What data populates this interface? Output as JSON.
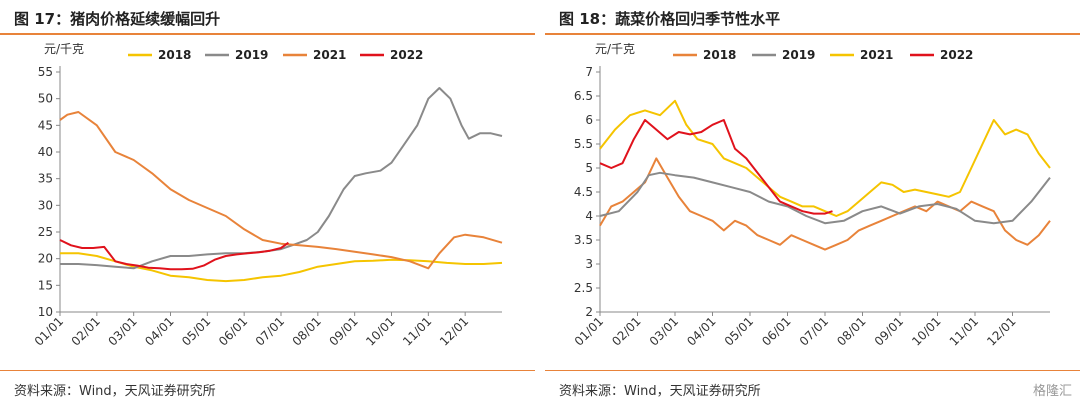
{
  "colors": {
    "c2018": "#F5C400",
    "c2019": "#8A8A8A",
    "c2021": "#E8833A",
    "c2022": "#E0121C",
    "rule": "#E8833A",
    "axis": "#888888"
  },
  "charts": [
    {
      "title": "图 17：猪肉价格延续缓幅回升",
      "unit": "元/千克",
      "source": "资料来源：Wind，天风证券研究所"
    },
    {
      "title": "图 18：蔬菜价格回归季节性水平",
      "unit": "元/千克",
      "source": "资料来源：Wind，天风证券研究所"
    }
  ],
  "watermark": "格隆汇",
  "chart_data": [
    {
      "type": "line",
      "title": "图 17：猪肉价格延续缓幅回升",
      "ylabel": "元/千克",
      "ylim": [
        10,
        55
      ],
      "yticks": [
        10,
        15,
        20,
        25,
        30,
        35,
        40,
        45,
        50,
        55
      ],
      "x_domain": [
        0,
        12
      ],
      "x_ticks": [
        "01/01",
        "02/01",
        "03/01",
        "04/01",
        "05/01",
        "06/01",
        "07/01",
        "08/01",
        "09/01",
        "10/01",
        "11/01",
        "12/01"
      ],
      "legend": "top",
      "grid": false,
      "series": [
        {
          "name": "2018",
          "color": "#F5C400",
          "x": [
            0,
            0.5,
            1,
            1.5,
            2,
            2.5,
            3,
            3.5,
            4,
            4.5,
            5,
            5.5,
            6,
            6.5,
            7,
            7.5,
            8,
            8.5,
            9,
            9.5,
            10,
            10.5,
            11,
            11.5,
            12
          ],
          "y": [
            21,
            21,
            20.5,
            19.5,
            18.5,
            17.8,
            16.8,
            16.5,
            16,
            15.8,
            16,
            16.5,
            16.8,
            17.5,
            18.5,
            19,
            19.5,
            19.6,
            19.8,
            19.7,
            19.5,
            19.2,
            19,
            19,
            19.2
          ]
        },
        {
          "name": "2019",
          "color": "#8A8A8A",
          "x": [
            0,
            0.5,
            1,
            1.5,
            2,
            2.5,
            3,
            3.5,
            4,
            4.5,
            5,
            5.5,
            6,
            6.3,
            6.7,
            7,
            7.3,
            7.7,
            8,
            8.3,
            8.7,
            9,
            9.3,
            9.7,
            10,
            10.3,
            10.6,
            10.9,
            11.1,
            11.4,
            11.7,
            12
          ],
          "y": [
            19,
            19,
            18.8,
            18.5,
            18.2,
            19.5,
            20.5,
            20.5,
            20.8,
            21,
            21,
            21.3,
            21.8,
            22.5,
            23.5,
            25,
            28,
            33,
            35.5,
            36,
            36.5,
            38,
            41,
            45,
            50,
            52,
            50,
            45,
            42.5,
            43.5,
            43.5,
            43
          ]
        },
        {
          "name": "2021",
          "color": "#E8833A",
          "x": [
            0,
            0.2,
            0.5,
            1,
            1.5,
            2,
            2.5,
            3,
            3.5,
            4,
            4.5,
            5,
            5.5,
            6,
            6.5,
            7,
            7.5,
            8,
            8.5,
            9,
            9.5,
            10,
            10.3,
            10.7,
            11,
            11.5,
            12
          ],
          "y": [
            46,
            47,
            47.5,
            45,
            40,
            38.5,
            36,
            33,
            31,
            29.5,
            28,
            25.5,
            23.5,
            22.8,
            22.5,
            22.2,
            21.8,
            21.3,
            20.8,
            20.3,
            19.5,
            18.2,
            21,
            24,
            24.5,
            24,
            23
          ]
        },
        {
          "name": "2022",
          "color": "#E0121C",
          "x": [
            0,
            0.3,
            0.6,
            0.9,
            1.2,
            1.5,
            1.8,
            2.1,
            2.4,
            2.7,
            3,
            3.3,
            3.6,
            3.9,
            4.2,
            4.5,
            4.8,
            5.1,
            5.4,
            5.7,
            6,
            6.2
          ],
          "y": [
            23.5,
            22.5,
            22,
            22,
            22.2,
            19.5,
            19,
            18.7,
            18.3,
            18.2,
            18,
            18,
            18.1,
            18.7,
            19.8,
            20.5,
            20.8,
            21,
            21.2,
            21.5,
            22,
            23
          ]
        }
      ]
    },
    {
      "type": "line",
      "title": "图 18：蔬菜价格回归季节性水平",
      "ylabel": "元/千克",
      "ylim": [
        2,
        7
      ],
      "yticks": [
        2,
        2.5,
        3,
        3.5,
        4,
        4.5,
        5,
        5.5,
        6,
        6.5,
        7
      ],
      "x_domain": [
        0,
        12
      ],
      "x_ticks": [
        "01/01",
        "02/01",
        "03/01",
        "04/01",
        "05/01",
        "06/01",
        "07/01",
        "08/01",
        "09/01",
        "10/01",
        "11/01",
        "12/01"
      ],
      "legend": "top",
      "grid": false,
      "series": [
        {
          "name": "2018",
          "color": "#E8833A",
          "x": [
            0,
            0.3,
            0.6,
            0.9,
            1.2,
            1.5,
            1.8,
            2.1,
            2.4,
            2.7,
            3,
            3.3,
            3.6,
            3.9,
            4.2,
            4.5,
            4.8,
            5.1,
            5.4,
            5.7,
            6,
            6.3,
            6.6,
            6.9,
            7.2,
            7.5,
            7.8,
            8.1,
            8.4,
            8.7,
            9,
            9.3,
            9.6,
            9.9,
            10.2,
            10.5,
            10.8,
            11.1,
            11.4,
            11.7,
            12
          ],
          "y": [
            3.8,
            4.2,
            4.3,
            4.5,
            4.7,
            5.2,
            4.8,
            4.4,
            4.1,
            4,
            3.9,
            3.7,
            3.9,
            3.8,
            3.6,
            3.5,
            3.4,
            3.6,
            3.5,
            3.4,
            3.3,
            3.4,
            3.5,
            3.7,
            3.8,
            3.9,
            4,
            4.1,
            4.2,
            4.1,
            4.3,
            4.2,
            4.1,
            4.3,
            4.2,
            4.1,
            3.7,
            3.5,
            3.4,
            3.6,
            3.9
          ]
        },
        {
          "name": "2019",
          "color": "#8A8A8A",
          "x": [
            0,
            0.5,
            1,
            1.3,
            1.6,
            2,
            2.5,
            3,
            3.5,
            4,
            4.5,
            5,
            5.5,
            6,
            6.5,
            7,
            7.5,
            8,
            8.5,
            9,
            9.5,
            10,
            10.5,
            11,
            11.5,
            12
          ],
          "y": [
            4,
            4.1,
            4.5,
            4.85,
            4.9,
            4.85,
            4.8,
            4.7,
            4.6,
            4.5,
            4.3,
            4.2,
            4,
            3.85,
            3.9,
            4.1,
            4.2,
            4.05,
            4.2,
            4.25,
            4.15,
            3.9,
            3.85,
            3.9,
            4.3,
            4.8
          ]
        },
        {
          "name": "2021",
          "color": "#F5C400",
          "x": [
            0,
            0.4,
            0.8,
            1.2,
            1.6,
            2,
            2.3,
            2.6,
            3,
            3.3,
            3.6,
            3.9,
            4.2,
            4.5,
            4.8,
            5.1,
            5.4,
            5.7,
            6,
            6.3,
            6.6,
            6.9,
            7.2,
            7.5,
            7.8,
            8.1,
            8.4,
            8.7,
            9,
            9.3,
            9.6,
            9.9,
            10.2,
            10.5,
            10.8,
            11.1,
            11.4,
            11.7,
            12
          ],
          "y": [
            5.4,
            5.8,
            6.1,
            6.2,
            6.1,
            6.4,
            5.9,
            5.6,
            5.5,
            5.2,
            5.1,
            5,
            4.8,
            4.6,
            4.4,
            4.3,
            4.2,
            4.2,
            4.1,
            4,
            4.1,
            4.3,
            4.5,
            4.7,
            4.65,
            4.5,
            4.55,
            4.5,
            4.45,
            4.4,
            4.5,
            5,
            5.5,
            6,
            5.7,
            5.8,
            5.7,
            5.3,
            5.0
          ]
        },
        {
          "name": "2022",
          "color": "#E0121C",
          "x": [
            0,
            0.3,
            0.6,
            0.9,
            1.2,
            1.5,
            1.8,
            2.1,
            2.4,
            2.7,
            3,
            3.3,
            3.6,
            3.9,
            4.2,
            4.5,
            4.8,
            5.1,
            5.4,
            5.7,
            6,
            6.2
          ],
          "y": [
            5.1,
            5,
            5.1,
            5.6,
            6,
            5.8,
            5.6,
            5.75,
            5.7,
            5.75,
            5.9,
            6,
            5.4,
            5.2,
            4.9,
            4.6,
            4.3,
            4.2,
            4.1,
            4.05,
            4.05,
            4.1
          ]
        }
      ]
    }
  ]
}
